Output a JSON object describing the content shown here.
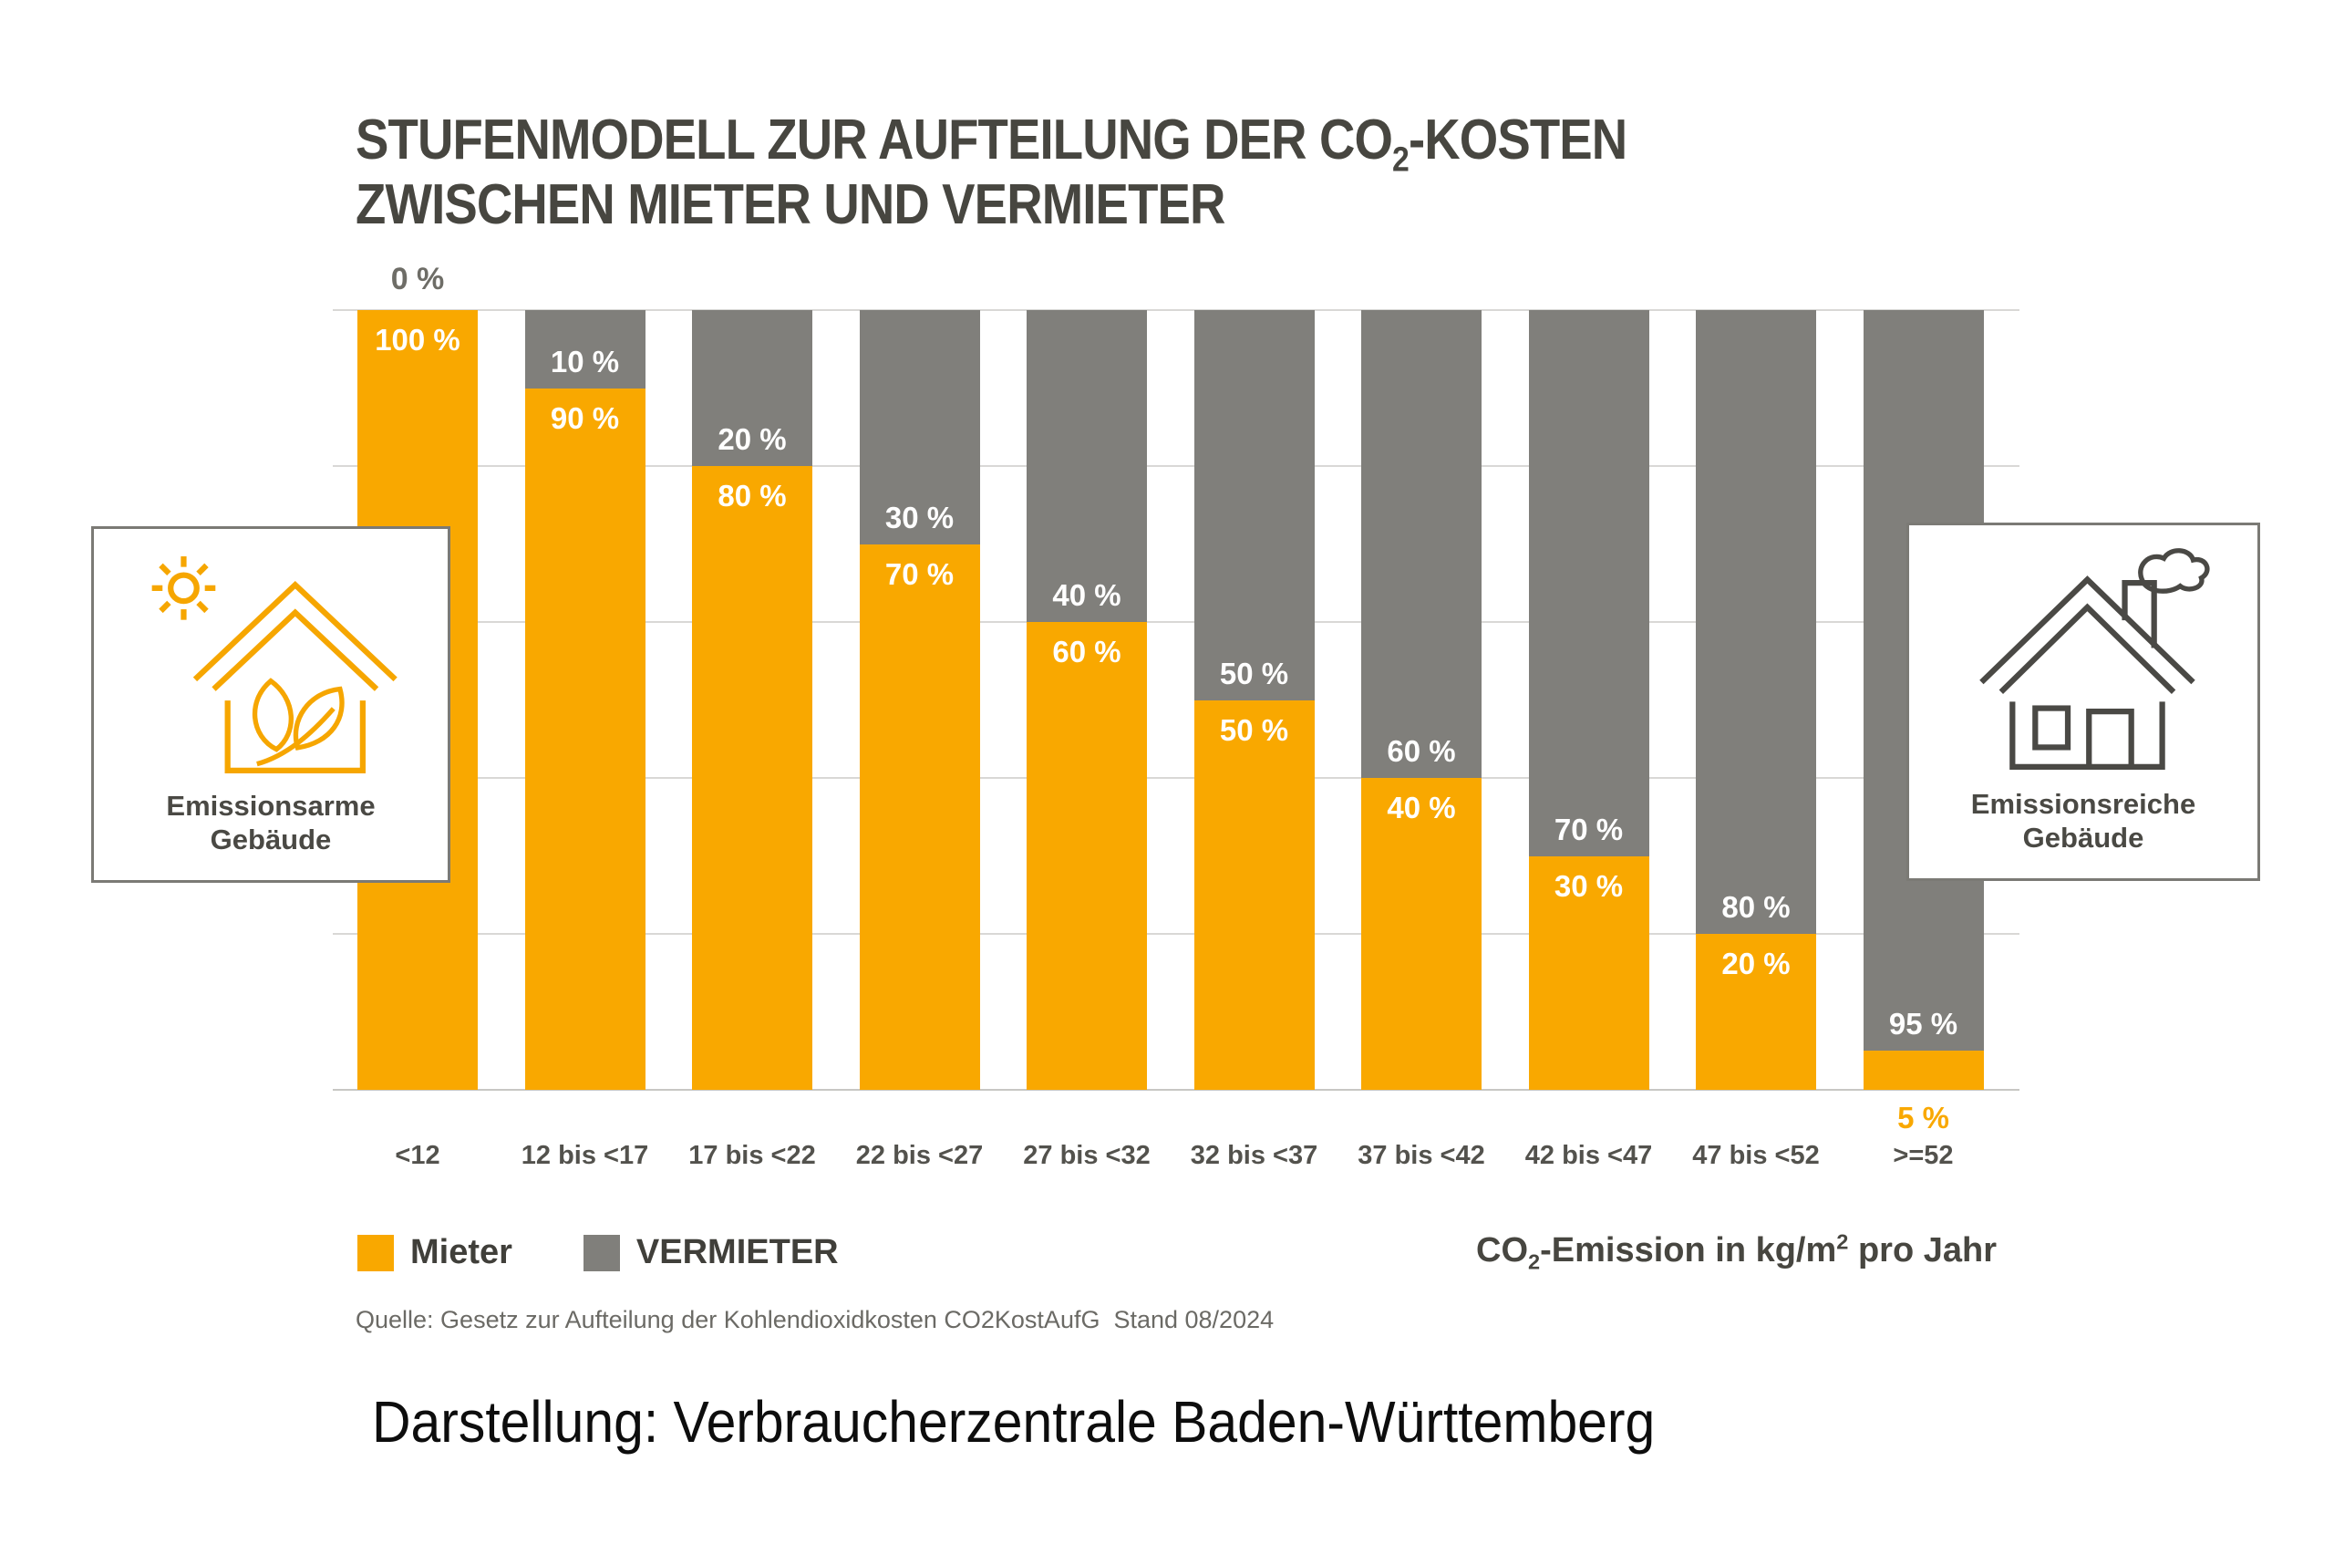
{
  "title": {
    "line1_pre": "STUFENMODELL ZUR AUFTEILUNG DER CO",
    "line1_sub": "2",
    "line1_post": "-KOSTEN",
    "line2": "ZWISCHEN MIETER UND VERMIETER"
  },
  "chart_data": {
    "type": "bar",
    "stacked": true,
    "unit": "percent",
    "title": "Stufenmodell zur Aufteilung der CO2-Kosten zwischen Mieter und Vermieter",
    "categories": [
      "<12",
      "12 bis <17",
      "17 bis <22",
      "22 bis <27",
      "27 bis <32",
      "32 bis <37",
      "37 bis <42",
      "42 bis <47",
      "47 bis <52",
      ">=52"
    ],
    "series": [
      {
        "name": "Mieter",
        "color": "#F9A800",
        "values": [
          100,
          90,
          80,
          70,
          60,
          50,
          40,
          30,
          20,
          5
        ]
      },
      {
        "name": "VERMIETER",
        "color": "#807F7B",
        "values": [
          0,
          10,
          20,
          30,
          40,
          50,
          60,
          70,
          80,
          95
        ]
      }
    ],
    "ylim": [
      0,
      100
    ],
    "gridline_step_percent": 20,
    "grid_on": true,
    "legend_position": "bottom-left",
    "x_axis_title": "CO2-Emission in kg/m2 pro Jahr",
    "bars": [
      {
        "category": "<12",
        "mieter": 100,
        "vermieter": 0,
        "mieter_label": "100 %",
        "vermieter_label": "0 %"
      },
      {
        "category": "12 bis <17",
        "mieter": 90,
        "vermieter": 10,
        "mieter_label": "90 %",
        "vermieter_label": "10 %"
      },
      {
        "category": "17 bis <22",
        "mieter": 80,
        "vermieter": 20,
        "mieter_label": "80 %",
        "vermieter_label": "20 %"
      },
      {
        "category": "22 bis <27",
        "mieter": 70,
        "vermieter": 30,
        "mieter_label": "70 %",
        "vermieter_label": "30 %"
      },
      {
        "category": "27 bis <32",
        "mieter": 60,
        "vermieter": 40,
        "mieter_label": "60 %",
        "vermieter_label": "40 %"
      },
      {
        "category": "32 bis <37",
        "mieter": 50,
        "vermieter": 50,
        "mieter_label": "50 %",
        "vermieter_label": "50 %"
      },
      {
        "category": "37 bis <42",
        "mieter": 40,
        "vermieter": 60,
        "mieter_label": "40 %",
        "vermieter_label": "60 %"
      },
      {
        "category": "42 bis <47",
        "mieter": 30,
        "vermieter": 70,
        "mieter_label": "30 %",
        "vermieter_label": "70 %"
      },
      {
        "category": "47 bis <52",
        "mieter": 20,
        "vermieter": 80,
        "mieter_label": "20 %",
        "vermieter_label": "80 %"
      },
      {
        "category": ">=52",
        "mieter": 5,
        "vermieter": 95,
        "mieter_label": "5 %",
        "vermieter_label": "95 %"
      }
    ]
  },
  "annotations": {
    "low_emission": {
      "line1": "Emissionsarme",
      "line2": "Gebäude"
    },
    "high_emission": {
      "line1": "Emissionsreiche",
      "line2": "Gebäude"
    }
  },
  "legend": {
    "mieter": "Mieter",
    "vermieter": "VERMIETER"
  },
  "axis_caption": {
    "pre": "CO",
    "sub": "2",
    "mid": "-Emission in kg/m",
    "sup": "2",
    "post": " pro Jahr"
  },
  "source": "Quelle: Gesetz zur Aufteilung der Kohlendioxidkosten CO2KostAufG  Stand 08/2024",
  "attribution": "Darstellung: Verbraucherzentrale Baden-Württemberg",
  "colors": {
    "mieter": "#F9A800",
    "vermieter": "#807F7B",
    "grid": "#D9D8D6",
    "title_text": "#474640",
    "axis_text": "#53524D",
    "label_on_bar": "#FFFFFF",
    "icon_low": "#F6A600",
    "icon_high": "#4A4945"
  }
}
